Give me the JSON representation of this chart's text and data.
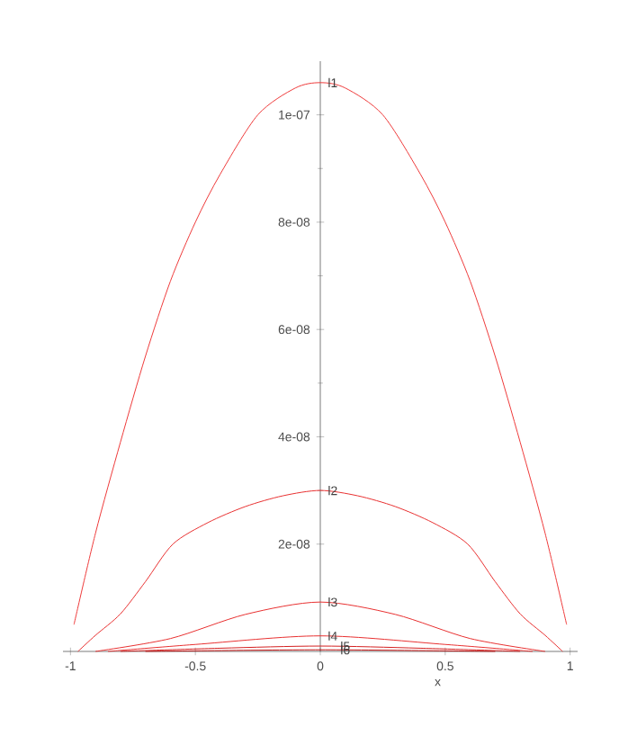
{
  "chart_data": {
    "type": "line",
    "xlabel": "x",
    "xlim": [
      -1.03,
      1.03
    ],
    "ylim": [
      0,
      1.1e-07
    ],
    "xticks": [
      -1,
      -0.5,
      0,
      0.5,
      1
    ],
    "yticks": [
      {
        "value": 2e-08,
        "label": "2e-08"
      },
      {
        "value": 4e-08,
        "label": "4e-08"
      },
      {
        "value": 6e-08,
        "label": "6e-08"
      },
      {
        "value": 8e-08,
        "label": "8e-08"
      },
      {
        "value": 1e-07,
        "label": "1e-07"
      }
    ],
    "grid": false,
    "marker": "none",
    "line_style": "solid",
    "series": [
      {
        "name": "l1",
        "color": "#ee3a3a",
        "x": [
          -0.986,
          -0.9,
          -0.8,
          -0.7,
          -0.6,
          -0.5,
          -0.4,
          -0.25,
          -0.1,
          0,
          0.1,
          0.25,
          0.4,
          0.5,
          0.6,
          0.7,
          0.8,
          0.9,
          0.986
        ],
        "values": [
          5e-09,
          2.2e-08,
          3.9e-08,
          5.5e-08,
          6.9e-08,
          8e-08,
          8.9e-08,
          1e-07,
          1.05e-07,
          1.06e-07,
          1.05e-07,
          1e-07,
          8.9e-08,
          8e-08,
          6.9e-08,
          5.5e-08,
          3.9e-08,
          2.2e-08,
          5e-09
        ]
      },
      {
        "name": "l2",
        "color": "#e83030",
        "x": [
          -0.97,
          -0.9,
          -0.8,
          -0.7,
          -0.59,
          -0.45,
          -0.3,
          -0.15,
          0,
          0.15,
          0.3,
          0.45,
          0.59,
          0.7,
          0.8,
          0.9,
          0.97
        ],
        "values": [
          0,
          3e-09,
          7e-09,
          1.3e-08,
          2e-08,
          2.4e-08,
          2.7e-08,
          2.9e-08,
          3e-08,
          2.9e-08,
          2.7e-08,
          2.4e-08,
          2e-08,
          1.3e-08,
          7e-09,
          3e-09,
          0
        ]
      },
      {
        "name": "l3",
        "color": "#e83030",
        "x": [
          -0.9,
          -0.6,
          -0.3,
          0,
          0.3,
          0.6,
          0.9
        ],
        "values": [
          0,
          2.4e-09,
          6.9e-09,
          9.2e-09,
          6.9e-09,
          2.4e-09,
          0
        ]
      },
      {
        "name": "l4",
        "color": "#e83030",
        "x": [
          -0.85,
          -0.5,
          0,
          0.5,
          0.85
        ],
        "values": [
          0,
          1.3e-09,
          2.9e-09,
          1.3e-09,
          0
        ]
      },
      {
        "name": "l5",
        "color": "#d42020",
        "x": [
          -0.8,
          -0.4,
          0,
          0.4,
          0.8
        ],
        "values": [
          0,
          6e-10,
          1e-09,
          6e-10,
          0
        ]
      },
      {
        "name": "l6",
        "color": "#c01010",
        "x": [
          -0.7,
          0,
          0.7
        ],
        "values": [
          0,
          3e-10,
          0
        ]
      }
    ]
  }
}
